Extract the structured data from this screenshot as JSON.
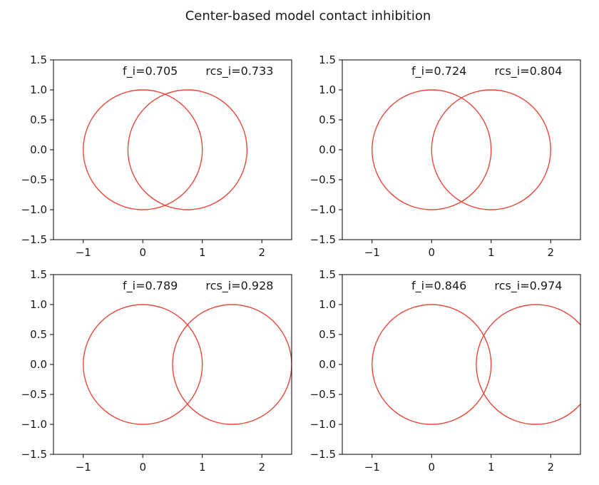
{
  "title": "Center-based model contact inhibition",
  "chart_data": [
    {
      "type": "scatter",
      "title": "",
      "xlabel": "",
      "ylabel": "",
      "xlim": [
        -1.5,
        2.5
      ],
      "ylim": [
        -1.5,
        1.5
      ],
      "xticks": [
        -1,
        0,
        1,
        2
      ],
      "xtick_labels": [
        "−1",
        "0",
        "1",
        "2"
      ],
      "yticks": [
        1.5,
        1.0,
        0.5,
        0.0,
        -0.5,
        -1.0,
        -1.5
      ],
      "ytick_labels": [
        "1.5",
        "1.0",
        "0.5",
        "0.0",
        "−0.5",
        "−1.0",
        "−1.5"
      ],
      "circles": [
        {
          "cx": 0,
          "cy": 0,
          "r": 1
        },
        {
          "cx": 0.75,
          "cy": 0,
          "r": 1
        }
      ],
      "color": "#e8483b",
      "annotations": [
        "f_i=0.705",
        "rcs_i=0.733"
      ]
    },
    {
      "type": "scatter",
      "title": "",
      "xlabel": "",
      "ylabel": "",
      "xlim": [
        -1.5,
        2.5
      ],
      "ylim": [
        -1.5,
        1.5
      ],
      "xticks": [
        -1,
        0,
        1,
        2
      ],
      "xtick_labels": [
        "−1",
        "0",
        "1",
        "2"
      ],
      "yticks": [
        1.5,
        1.0,
        0.5,
        0.0,
        -0.5,
        -1.0,
        -1.5
      ],
      "ytick_labels": [
        "1.5",
        "1.0",
        "0.5",
        "0.0",
        "−0.5",
        "−1.0",
        "−1.5"
      ],
      "circles": [
        {
          "cx": 0,
          "cy": 0,
          "r": 1
        },
        {
          "cx": 1.0,
          "cy": 0,
          "r": 1
        }
      ],
      "color": "#e8483b",
      "annotations": [
        "f_i=0.724",
        "rcs_i=0.804"
      ]
    },
    {
      "type": "scatter",
      "title": "",
      "xlabel": "",
      "ylabel": "",
      "xlim": [
        -1.5,
        2.5
      ],
      "ylim": [
        -1.5,
        1.5
      ],
      "xticks": [
        -1,
        0,
        1,
        2
      ],
      "xtick_labels": [
        "−1",
        "0",
        "1",
        "2"
      ],
      "yticks": [
        1.5,
        1.0,
        0.5,
        0.0,
        -0.5,
        -1.0,
        -1.5
      ],
      "ytick_labels": [
        "1.5",
        "1.0",
        "0.5",
        "0.0",
        "−0.5",
        "−1.0",
        "−1.5"
      ],
      "circles": [
        {
          "cx": 0,
          "cy": 0,
          "r": 1
        },
        {
          "cx": 1.5,
          "cy": 0,
          "r": 1
        }
      ],
      "color": "#e8483b",
      "annotations": [
        "f_i=0.789",
        "rcs_i=0.928"
      ]
    },
    {
      "type": "scatter",
      "title": "",
      "xlabel": "",
      "ylabel": "",
      "xlim": [
        -1.5,
        2.5
      ],
      "ylim": [
        -1.5,
        1.5
      ],
      "xticks": [
        -1,
        0,
        1,
        2
      ],
      "xtick_labels": [
        "−1",
        "0",
        "1",
        "2"
      ],
      "yticks": [
        1.5,
        1.0,
        0.5,
        0.0,
        -0.5,
        -1.0,
        -1.5
      ],
      "ytick_labels": [
        "1.5",
        "1.0",
        "0.5",
        "0.0",
        "−0.5",
        "−1.0",
        "−1.5"
      ],
      "circles": [
        {
          "cx": 0,
          "cy": 0,
          "r": 1
        },
        {
          "cx": 1.75,
          "cy": 0,
          "r": 1
        }
      ],
      "color": "#e8483b",
      "annotations": [
        "f_i=0.846",
        "rcs_i=0.974"
      ]
    }
  ]
}
